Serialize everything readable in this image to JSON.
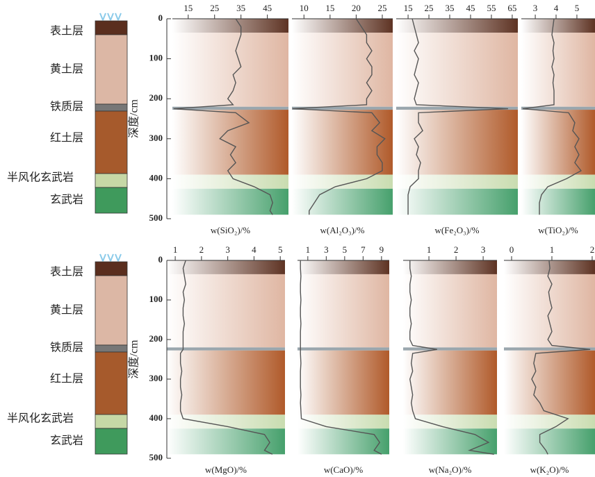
{
  "soil_column": {
    "layers": [
      "表土层",
      "黄土层",
      "铁质层",
      "红土层",
      "半风化玄武岩",
      "玄武岩"
    ]
  },
  "chart_data": [
    {
      "type": "line",
      "ylabel": "深度/cm",
      "xlabel": "w(SiO₂)/%",
      "xlim": [
        9,
        53
      ],
      "xticks": [
        15,
        25,
        35,
        45
      ],
      "ylim": [
        0,
        500
      ],
      "yticks": [
        0,
        100,
        200,
        300,
        400,
        500
      ],
      "depth": [
        0,
        20,
        40,
        60,
        80,
        100,
        120,
        140,
        160,
        180,
        200,
        215,
        225,
        235,
        260,
        280,
        300,
        320,
        340,
        360,
        380,
        400,
        420,
        440,
        460,
        480,
        490
      ],
      "series": [
        {
          "color": "#555555",
          "values": [
            33,
            35,
            35,
            34,
            33,
            34,
            35,
            32,
            33,
            32,
            30,
            32,
            9.5,
            33,
            38,
            30,
            27,
            33,
            31,
            33,
            30,
            32,
            40,
            46,
            47,
            46,
            47
          ]
        }
      ]
    },
    {
      "type": "line",
      "xlabel": "w(Al₂O₃)/%",
      "xlim": [
        7.7,
        27
      ],
      "xticks": [
        10,
        15,
        20,
        25
      ],
      "ylim": [
        0,
        500
      ],
      "depth": [
        0,
        20,
        40,
        60,
        80,
        100,
        120,
        140,
        160,
        180,
        200,
        215,
        225,
        235,
        260,
        280,
        300,
        320,
        340,
        360,
        380,
        400,
        420,
        440,
        460,
        480,
        490
      ],
      "series": [
        {
          "color": "#555555",
          "values": [
            20,
            21,
            22,
            22,
            23,
            22,
            23,
            23,
            22,
            23,
            22,
            22,
            7.8,
            23,
            24.5,
            23,
            25.5,
            24,
            24,
            25,
            25,
            22,
            16,
            13,
            12,
            11,
            11
          ]
        }
      ]
    },
    {
      "type": "line",
      "xlabel": "w(Fe₂O₃)/%",
      "xlim": [
        9.3,
        67.7
      ],
      "xticks": [
        15,
        25,
        35,
        45,
        55,
        65
      ],
      "ylim": [
        0,
        500
      ],
      "depth": [
        0,
        20,
        40,
        60,
        80,
        100,
        120,
        140,
        160,
        180,
        200,
        215,
        225,
        235,
        260,
        280,
        300,
        320,
        340,
        360,
        380,
        400,
        420,
        440,
        460,
        480,
        490
      ],
      "series": [
        {
          "color": "#555555",
          "values": [
            17,
            18,
            19,
            20,
            18,
            20,
            19,
            18,
            20,
            19,
            18,
            19,
            63,
            20,
            20,
            22,
            18,
            20,
            19,
            21,
            20,
            20,
            16,
            15,
            15,
            15,
            15
          ]
        }
      ]
    },
    {
      "type": "line",
      "xlabel": "w(TiO₂)/%",
      "xlim": [
        2.33,
        5.87
      ],
      "xticks": [
        3,
        4,
        5
      ],
      "ylim": [
        0,
        500
      ],
      "depth": [
        0,
        20,
        40,
        60,
        80,
        100,
        120,
        140,
        160,
        180,
        200,
        215,
        225,
        235,
        260,
        280,
        300,
        320,
        340,
        360,
        380,
        400,
        420,
        440,
        460,
        480,
        490
      ],
      "series": [
        {
          "color": "#555555",
          "values": [
            3.9,
            3.85,
            3.8,
            3.9,
            3.85,
            3.9,
            3.8,
            3.9,
            3.85,
            3.9,
            3.9,
            3.9,
            2.4,
            4.6,
            4.9,
            4.8,
            5.1,
            4.9,
            5.1,
            4.9,
            5.2,
            4.5,
            3.6,
            3.3,
            3.2,
            3.2,
            3.2
          ]
        }
      ]
    },
    {
      "type": "line",
      "ylabel": "深度/cm",
      "xlabel": "w(MgO)/%",
      "xlim": [
        0.68,
        5.18
      ],
      "xticks": [
        1,
        2,
        3,
        4,
        5
      ],
      "ylim": [
        0,
        500
      ],
      "yticks": [
        0,
        100,
        200,
        300,
        400,
        500
      ],
      "depth": [
        0,
        20,
        40,
        60,
        80,
        100,
        120,
        140,
        160,
        180,
        200,
        215,
        225,
        235,
        260,
        280,
        300,
        320,
        340,
        360,
        380,
        400,
        420,
        440,
        460,
        480,
        490
      ],
      "series": [
        {
          "color": "#555555",
          "values": [
            1.4,
            1.3,
            1.35,
            1.4,
            1.3,
            1.35,
            1.3,
            1.3,
            1.35,
            1.3,
            1.3,
            1.3,
            1.3,
            1.2,
            1.2,
            1.25,
            1.2,
            1.2,
            1.25,
            1.2,
            1.2,
            1.3,
            3.0,
            4.4,
            4.6,
            4.4,
            4.7
          ]
        }
      ]
    },
    {
      "type": "line",
      "xlabel": "w(CaO)/%",
      "xlim": [
        -0.12,
        9.84
      ],
      "xticks": [
        1,
        3,
        5,
        7,
        9
      ],
      "ylim": [
        0,
        500
      ],
      "depth": [
        0,
        20,
        40,
        60,
        80,
        100,
        120,
        140,
        160,
        180,
        200,
        215,
        225,
        235,
        260,
        280,
        300,
        320,
        340,
        360,
        380,
        400,
        420,
        440,
        460,
        480,
        490
      ],
      "series": [
        {
          "color": "#555555",
          "values": [
            0.2,
            0.2,
            0.25,
            0.2,
            0.2,
            0.25,
            0.2,
            0.2,
            0.25,
            0.2,
            0.2,
            0.2,
            0.2,
            0.2,
            0.25,
            0.2,
            0.2,
            0.2,
            0.25,
            0.2,
            0.25,
            0.3,
            3,
            8.2,
            8.8,
            8.2,
            9
          ]
        }
      ]
    },
    {
      "type": "line",
      "xlabel": "w(Na₂O)/%",
      "xlim": [
        0.05,
        3.51
      ],
      "xticks": [
        1,
        2,
        3
      ],
      "ylim": [
        0,
        500
      ],
      "depth": [
        0,
        20,
        40,
        60,
        80,
        100,
        120,
        140,
        160,
        180,
        200,
        215,
        225,
        235,
        260,
        280,
        300,
        320,
        340,
        360,
        380,
        400,
        420,
        440,
        460,
        480,
        490
      ],
      "series": [
        {
          "color": "#555555",
          "values": [
            0.3,
            0.3,
            0.35,
            0.3,
            0.3,
            0.35,
            0.3,
            0.3,
            0.35,
            0.3,
            0.3,
            0.4,
            1.3,
            0.4,
            0.35,
            0.4,
            0.3,
            0.35,
            0.4,
            0.35,
            0.4,
            0.5,
            1.5,
            2.7,
            3.2,
            2.5,
            3.4
          ]
        }
      ]
    },
    {
      "type": "line",
      "xlabel": "w(K₂O)/%",
      "xlim": [
        -0.19,
        2.07
      ],
      "xticks": [
        0,
        1,
        2
      ],
      "ylim": [
        0,
        500
      ],
      "depth": [
        0,
        20,
        40,
        60,
        80,
        100,
        120,
        140,
        160,
        180,
        200,
        215,
        225,
        235,
        260,
        280,
        300,
        320,
        340,
        360,
        380,
        400,
        420,
        440,
        460,
        480,
        490
      ],
      "series": [
        {
          "color": "#555555",
          "values": [
            0.93,
            0.95,
            0.9,
            1.0,
            0.92,
            0.95,
            1.0,
            0.9,
            0.95,
            1.0,
            0.9,
            1.0,
            1.95,
            0.6,
            0.55,
            0.6,
            0.5,
            0.6,
            0.55,
            0.7,
            0.8,
            1.4,
            1.1,
            0.7,
            0.7,
            0.85,
            0.9
          ]
        }
      ]
    }
  ]
}
